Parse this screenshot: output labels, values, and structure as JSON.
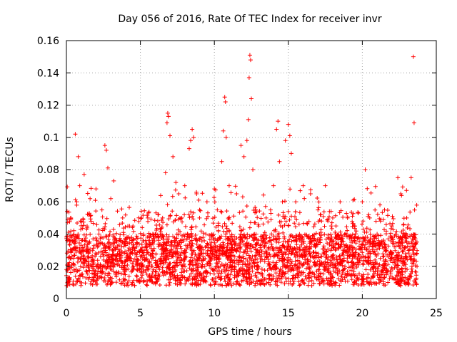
{
  "chart_data": {
    "type": "scatter",
    "title": "Day 056 of 2016, Rate Of TEC Index for receiver invr",
    "xlabel": "GPS time / hours",
    "ylabel": "ROTI / TECUs",
    "xlim": [
      0,
      25
    ],
    "ylim": [
      0,
      0.16
    ],
    "xticks": [
      0,
      5,
      10,
      15,
      20,
      25
    ],
    "yticks": [
      0,
      0.02,
      0.04,
      0.06,
      0.08,
      0.1,
      0.12,
      0.14,
      0.16
    ],
    "xtick_labels": [
      "0",
      "5",
      "10",
      "15",
      "20",
      "25"
    ],
    "ytick_labels": [
      "0",
      "0.02",
      "0.04",
      "0.06",
      "0.08",
      "0.1",
      "0.12",
      "0.14",
      "0.16"
    ],
    "grid": true,
    "marker": "+",
    "color": "#ff0000",
    "series": [
      {
        "name": "ROTI",
        "points": [
          [
            0.1,
            0.013
          ],
          [
            0.3,
            0.05
          ],
          [
            0.5,
            0.025
          ],
          [
            0.6,
            0.102
          ],
          [
            0.7,
            0.06
          ],
          [
            0.8,
            0.088
          ],
          [
            0.9,
            0.07
          ],
          [
            1.0,
            0.03
          ],
          [
            1.2,
            0.077
          ],
          [
            1.4,
            0.045
          ],
          [
            1.6,
            0.062
          ],
          [
            1.8,
            0.02
          ],
          [
            2.0,
            0.068
          ],
          [
            2.2,
            0.04
          ],
          [
            2.4,
            0.055
          ],
          [
            2.6,
            0.095
          ],
          [
            2.7,
            0.092
          ],
          [
            2.8,
            0.081
          ],
          [
            3.0,
            0.062
          ],
          [
            3.2,
            0.073
          ],
          [
            3.4,
            0.035
          ],
          [
            3.6,
            0.025
          ],
          [
            3.8,
            0.05
          ],
          [
            4.0,
            0.018
          ],
          [
            4.5,
            0.045
          ],
          [
            5.0,
            0.03
          ],
          [
            5.5,
            0.05
          ],
          [
            6.0,
            0.04
          ],
          [
            6.5,
            0.05
          ],
          [
            6.7,
            0.078
          ],
          [
            6.8,
            0.109
          ],
          [
            6.85,
            0.115
          ],
          [
            6.9,
            0.113
          ],
          [
            7.0,
            0.101
          ],
          [
            7.2,
            0.088
          ],
          [
            7.4,
            0.072
          ],
          [
            7.6,
            0.065
          ],
          [
            7.8,
            0.05
          ],
          [
            8.0,
            0.07
          ],
          [
            8.3,
            0.093
          ],
          [
            8.4,
            0.098
          ],
          [
            8.5,
            0.105
          ],
          [
            8.6,
            0.1
          ],
          [
            8.8,
            0.065
          ],
          [
            9.0,
            0.05
          ],
          [
            9.5,
            0.06
          ],
          [
            10.0,
            0.068
          ],
          [
            10.2,
            0.055
          ],
          [
            10.5,
            0.085
          ],
          [
            10.6,
            0.104
          ],
          [
            10.7,
            0.125
          ],
          [
            10.75,
            0.122
          ],
          [
            10.8,
            0.1
          ],
          [
            11.0,
            0.07
          ],
          [
            11.5,
            0.065
          ],
          [
            11.8,
            0.095
          ],
          [
            12.0,
            0.088
          ],
          [
            12.2,
            0.098
          ],
          [
            12.3,
            0.111
          ],
          [
            12.35,
            0.137
          ],
          [
            12.4,
            0.151
          ],
          [
            12.45,
            0.148
          ],
          [
            12.5,
            0.124
          ],
          [
            12.6,
            0.08
          ],
          [
            12.8,
            0.055
          ],
          [
            13.0,
            0.045
          ],
          [
            13.5,
            0.05
          ],
          [
            13.8,
            0.055
          ],
          [
            14.0,
            0.07
          ],
          [
            14.2,
            0.105
          ],
          [
            14.3,
            0.11
          ],
          [
            14.4,
            0.085
          ],
          [
            14.6,
            0.06
          ],
          [
            14.8,
            0.098
          ],
          [
            15.0,
            0.108
          ],
          [
            15.1,
            0.101
          ],
          [
            15.2,
            0.09
          ],
          [
            15.5,
            0.06
          ],
          [
            16.0,
            0.07
          ],
          [
            16.5,
            0.065
          ],
          [
            17.0,
            0.055
          ],
          [
            17.5,
            0.07
          ],
          [
            18.0,
            0.05
          ],
          [
            18.5,
            0.06
          ],
          [
            19.0,
            0.05
          ],
          [
            19.5,
            0.045
          ],
          [
            20.0,
            0.06
          ],
          [
            20.2,
            0.08
          ],
          [
            20.5,
            0.05
          ],
          [
            21.0,
            0.04
          ],
          [
            21.5,
            0.055
          ],
          [
            22.0,
            0.045
          ],
          [
            22.4,
            0.075
          ],
          [
            22.6,
            0.065
          ],
          [
            23.0,
            0.05
          ],
          [
            23.3,
            0.075
          ],
          [
            23.45,
            0.15
          ],
          [
            23.5,
            0.109
          ],
          [
            23.6,
            0.035
          ],
          [
            23.7,
            0.02
          ]
        ]
      }
    ]
  }
}
